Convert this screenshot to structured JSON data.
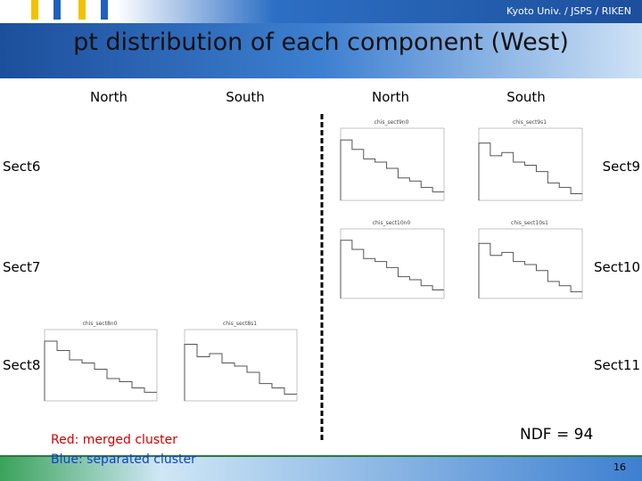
{
  "header": {
    "affiliation": "Kyoto Univ. / JSPS / RIKEN",
    "title": "pt distribution of each component (West)"
  },
  "columns": [
    "North",
    "South",
    "North",
    "South"
  ],
  "rows_left": [
    "Sect6",
    "Sect7",
    "Sect8"
  ],
  "rows_right": [
    "Sect9",
    "Sect10",
    "Sect11"
  ],
  "plots": [
    {
      "title": "chis_sect9n0"
    },
    {
      "title": "chis_sect9s1"
    },
    {
      "title": "chis_sect10n0"
    },
    {
      "title": "chis_sect10s1"
    },
    {
      "title": "chis_sect8n0"
    },
    {
      "title": "chis_sect8s1"
    }
  ],
  "legend": {
    "red": "Red: merged cluster",
    "blue": "Blue: separated cluster"
  },
  "ndf": "NDF = 94",
  "page_number": "16"
}
